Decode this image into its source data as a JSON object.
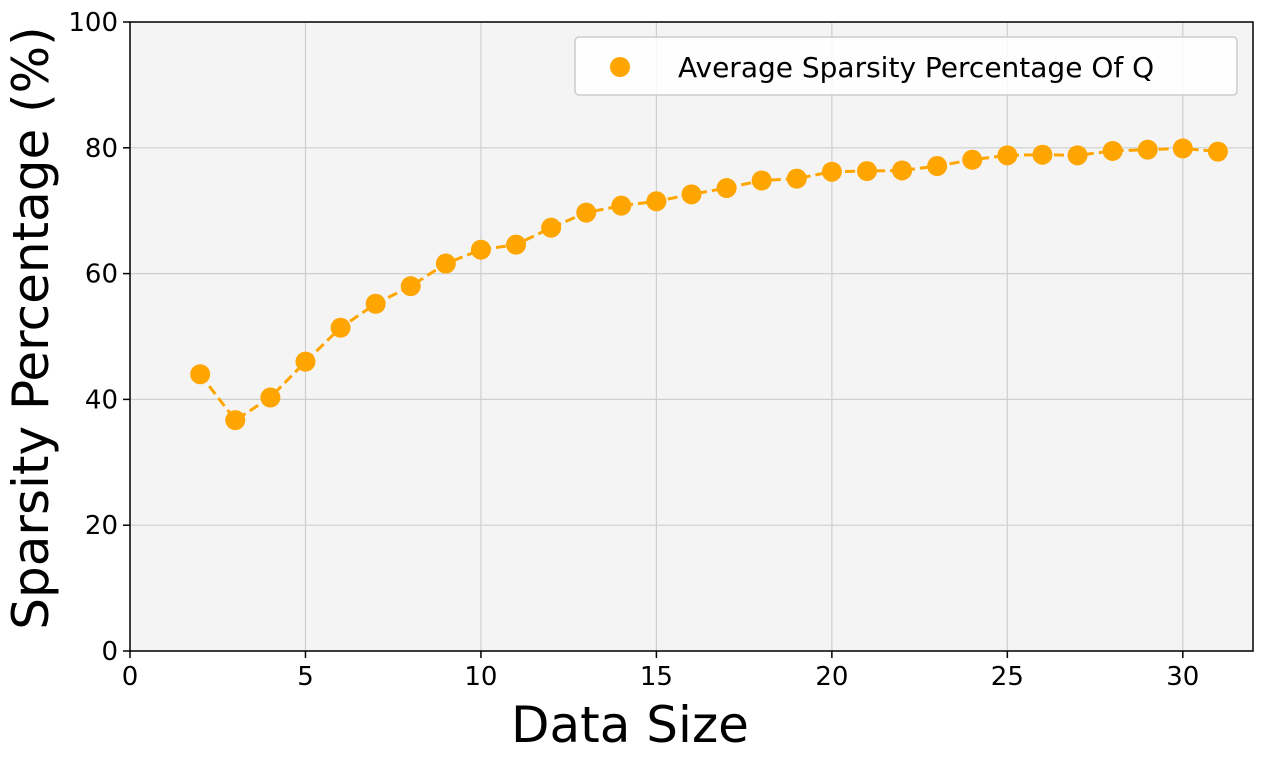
{
  "chart_data": {
    "type": "line",
    "title": "",
    "xlabel": "Data Size",
    "ylabel": "Sparsity Percentage (%)",
    "xlim": [
      0,
      32
    ],
    "ylim": [
      0,
      100
    ],
    "xticks": [
      0,
      5,
      10,
      15,
      20,
      25,
      30
    ],
    "yticks": [
      0,
      20,
      40,
      60,
      80,
      100
    ],
    "grid": true,
    "legend_position": "top-right",
    "series": [
      {
        "name": "Average Sparsity Percentage Of Q",
        "color": "#FFA500",
        "line_style": "dashed",
        "marker": "circle",
        "x": [
          2,
          3,
          4,
          5,
          6,
          7,
          8,
          9,
          10,
          11,
          12,
          13,
          14,
          15,
          16,
          17,
          18,
          19,
          20,
          21,
          22,
          23,
          24,
          25,
          26,
          27,
          28,
          29,
          30,
          31
        ],
        "y": [
          44.0,
          36.7,
          40.3,
          46.0,
          51.4,
          55.2,
          58.0,
          61.6,
          63.8,
          64.6,
          67.3,
          69.7,
          70.8,
          71.5,
          72.6,
          73.6,
          74.8,
          75.1,
          76.2,
          76.3,
          76.4,
          77.1,
          78.1,
          78.8,
          78.9,
          78.8,
          79.5,
          79.7,
          79.9,
          79.4
        ]
      }
    ]
  }
}
